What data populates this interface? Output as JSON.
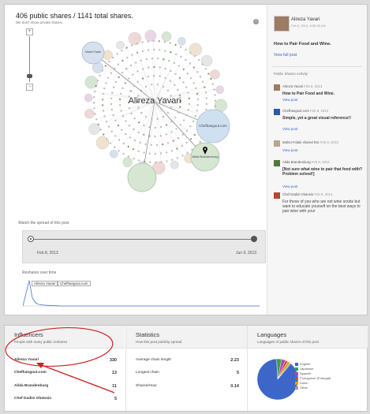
{
  "header": {
    "title": "406 public shares / 1141 total shares.",
    "subtitle": "We don't show private shares."
  },
  "graph": {
    "center_label": "Alireza Yavari",
    "node_labels": [
      "Chefhangout.com",
      "Alida Brandenburg",
      "Mahei Folaki"
    ]
  },
  "timeline": {
    "label": "Watch the spread of this post",
    "start_date": "Feb 8, 2013",
    "end_date": "Jun 9, 2013"
  },
  "reshares": {
    "label": "Reshares over time",
    "tags": [
      "Alireza Yavari",
      "Chefhangout.com"
    ],
    "levels": [
      0.95,
      0.3,
      0.12,
      0.06,
      0.04,
      0.03,
      0.02,
      0.02,
      0.01,
      0.01
    ]
  },
  "post": {
    "author": "Alireza Yavari",
    "time": "Feb 8, 2013, 8:05:26 AM",
    "title": "How to Pair Food and Wine.",
    "link": "View full post"
  },
  "activity": {
    "header": "Public Shares Activity",
    "items": [
      {
        "name": "Alireza Yavari",
        "date": "Feb 8, 2013",
        "text": "How to Pair Food and Wine.",
        "link": "View post",
        "color": "#9e7b63"
      },
      {
        "name": "Chefhangout.com",
        "date": "Feb 8, 2013",
        "text": "Simple, yet a great visual reference!!",
        "link": "View post",
        "color": "#2b5aa8"
      },
      {
        "name": "Mahei Folaki",
        "date": "Feb 8, 2013",
        "text": "shared this",
        "link": "View post",
        "color": "#b9a58e"
      },
      {
        "name": "Alida Brandenburg",
        "date": "Feb 8, 2013",
        "text": "[Not sure what wine to pair that food with? Problem solved!]",
        "link": "View post",
        "color": "#4e7a3a"
      },
      {
        "name": "Chef Dadisi Olutosin",
        "date": "Feb 8, 2013",
        "text": "For those of you who are not wine snobs but want to educate yourself on the best ways to pair wine with your",
        "link": "",
        "color": "#b8452c"
      }
    ]
  },
  "influencers": {
    "title": "Influencers",
    "subtitle": "People with many public reshares",
    "rows": [
      {
        "name": "Alireza Yavari",
        "value": "330"
      },
      {
        "name": "Chefhangout.com",
        "value": "13"
      },
      {
        "name": "Alida Brandenburg",
        "value": "11"
      },
      {
        "name": "Chef Dadisi Olutosin",
        "value": "5"
      }
    ]
  },
  "statistics": {
    "title": "Statistics",
    "subtitle": "How this post publicly spread",
    "rows": [
      {
        "label": "Average chain length",
        "value": "2.23"
      },
      {
        "label": "Longest chain",
        "value": "5"
      },
      {
        "label": "Shares/Hour",
        "value": "0.14"
      }
    ]
  },
  "languages": {
    "title": "Languages",
    "subtitle": "Languages of public shares of this post",
    "items": [
      {
        "name": "English",
        "share": 0.88,
        "color": "#3c67c8"
      },
      {
        "name": "Japanese",
        "share": 0.04,
        "color": "#3fa046"
      },
      {
        "name": "Spanish",
        "share": 0.03,
        "color": "#a748b8"
      },
      {
        "name": "Portuguese (Portugal)",
        "share": 0.02,
        "color": "#d24b2f"
      },
      {
        "name": "Dutch",
        "share": 0.02,
        "color": "#e39a2b"
      },
      {
        "name": "Other",
        "share": 0.01,
        "color": "#999999"
      }
    ]
  },
  "colors": {
    "accent_link": "#3366cc",
    "annotation_red": "#cc2222"
  }
}
